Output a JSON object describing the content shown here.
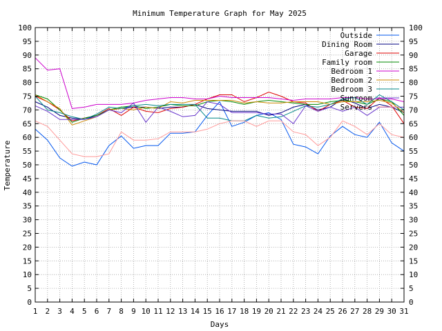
{
  "chart_data": {
    "type": "line",
    "title": "Minimum Temperature Graph for May 2025",
    "xlabel": "Days",
    "ylabel": "Temperature",
    "xlim": [
      1,
      31
    ],
    "ylim": [
      0,
      100
    ],
    "x_ticks": [
      1,
      2,
      3,
      4,
      5,
      6,
      7,
      8,
      9,
      10,
      11,
      12,
      13,
      14,
      15,
      16,
      17,
      18,
      19,
      20,
      21,
      22,
      23,
      24,
      25,
      26,
      27,
      28,
      29,
      30,
      31
    ],
    "y_ticks": [
      0,
      5,
      10,
      15,
      20,
      25,
      30,
      35,
      40,
      45,
      50,
      55,
      60,
      65,
      70,
      75,
      80,
      85,
      90,
      95,
      100
    ],
    "grid": true,
    "grid_style": "dotted",
    "legend_position": "top-right",
    "x": [
      1,
      2,
      3,
      4,
      5,
      6,
      7,
      8,
      9,
      10,
      11,
      12,
      13,
      14,
      15,
      16,
      17,
      18,
      19,
      20,
      21,
      22,
      23,
      24,
      25,
      26,
      27,
      28,
      29,
      30,
      31
    ],
    "series": [
      {
        "name": "Outside",
        "color": "#0055ee",
        "values": [
          63,
          59,
          52.5,
          49.5,
          51,
          50,
          57,
          60.5,
          56,
          57,
          57,
          61.5,
          61.5,
          62,
          68,
          73,
          64,
          65.5,
          68,
          69,
          66.5,
          57.5,
          56.5,
          54,
          60.5,
          64,
          61,
          60,
          65.5,
          58,
          55
        ]
      },
      {
        "name": "Dining Room",
        "color": "#000080",
        "values": [
          73,
          71,
          68,
          67,
          66.5,
          68,
          70,
          70.5,
          71,
          71,
          70.5,
          71,
          71,
          72,
          70.5,
          70,
          69.5,
          69.5,
          69.5,
          68,
          69,
          71,
          72,
          70,
          71,
          74,
          72.5,
          70.5,
          72,
          71,
          69
        ]
      },
      {
        "name": "Garage",
        "color": "#dd0000",
        "values": [
          75,
          73,
          70,
          66,
          67,
          68,
          70.5,
          68,
          71,
          69.5,
          69,
          70.5,
          71,
          72,
          74,
          75.5,
          75.5,
          73,
          74.5,
          76.5,
          75,
          73,
          72.5,
          69.5,
          72,
          73.5,
          71,
          70.5,
          74.5,
          71.5,
          65
        ]
      },
      {
        "name": "Family room",
        "color": "#008800",
        "values": [
          75.5,
          74,
          70,
          65.5,
          67,
          68,
          70,
          71,
          71.5,
          70.5,
          71,
          72,
          71.5,
          71.5,
          73,
          73.5,
          73,
          72,
          73,
          73.5,
          73,
          72.5,
          72,
          72,
          73,
          73.5,
          73,
          72,
          74,
          73,
          68
        ]
      },
      {
        "name": "Bedroom 1",
        "color": "#cc00cc",
        "values": [
          89,
          84.5,
          85,
          70.5,
          71,
          72,
          72,
          72,
          72.5,
          73.5,
          74,
          74.5,
          74.5,
          74,
          74,
          75,
          74.5,
          74.5,
          74.5,
          74.5,
          74,
          73.5,
          74,
          74,
          74,
          74.5,
          74.5,
          74,
          74,
          74,
          73
        ]
      },
      {
        "name": "Bedroom 2",
        "color": "#cc8800",
        "values": [
          75.5,
          73,
          70.5,
          64.5,
          66,
          67.5,
          70,
          70.5,
          70,
          71,
          70.5,
          73,
          72.5,
          73.5,
          73.5,
          73.5,
          73.5,
          72.5,
          73,
          72.5,
          72.5,
          73,
          73,
          73,
          72,
          73,
          73,
          73,
          73.5,
          72.5,
          69
        ]
      },
      {
        "name": "Bedroom 3",
        "color": "#008888",
        "values": [
          75,
          70,
          69,
          67.5,
          66.5,
          68.5,
          71,
          70.5,
          71.5,
          72,
          71.5,
          72,
          72,
          72,
          67,
          67,
          66,
          66,
          68,
          67,
          67.5,
          69.5,
          71.5,
          71,
          72,
          74,
          74.5,
          72,
          75.5,
          73,
          70
        ]
      },
      {
        "name": "Sunroom",
        "color": "#6633cc",
        "values": [
          71.5,
          69.5,
          66.5,
          66.5,
          66.5,
          67.5,
          70,
          69,
          72.5,
          65.5,
          71,
          69.5,
          67.5,
          68,
          73,
          72,
          69,
          69,
          69,
          68.5,
          68.5,
          65,
          71.5,
          69.5,
          71,
          69.5,
          71,
          68,
          71,
          71,
          71
        ]
      },
      {
        "name": "Servers",
        "color": "#ff9999",
        "values": [
          66,
          64,
          59,
          54,
          53,
          53,
          54,
          62,
          59,
          59,
          59.5,
          62,
          62,
          62,
          63,
          65,
          66,
          66,
          64,
          66,
          66,
          62,
          61,
          57,
          60,
          66,
          64,
          61,
          65,
          61,
          60
        ]
      }
    ]
  }
}
